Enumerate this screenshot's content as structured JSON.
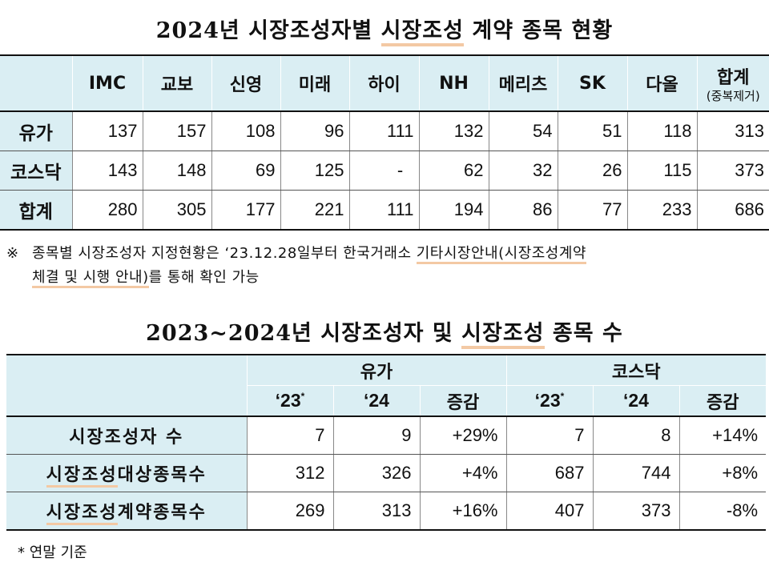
{
  "title1": {
    "parts": [
      "2024년 시장조성자별 ",
      "시장조성",
      " 계약 종목 현황"
    ]
  },
  "table1": {
    "headers": [
      "",
      "IMC",
      "교보",
      "신영",
      "미래",
      "하이",
      "NH",
      "메리츠",
      "SK",
      "다올",
      "합계"
    ],
    "total_sub": "(중복제거)",
    "rows": [
      {
        "label": "유가",
        "values": [
          "137",
          "157",
          "108",
          "96",
          "111",
          "132",
          "54",
          "51",
          "118",
          "313"
        ]
      },
      {
        "label": "코스닥",
        "values": [
          "143",
          "148",
          "69",
          "125",
          "-",
          "62",
          "32",
          "26",
          "115",
          "373"
        ]
      },
      {
        "label": "합계",
        "values": [
          "280",
          "305",
          "177",
          "221",
          "111",
          "194",
          "86",
          "77",
          "233",
          "686"
        ]
      }
    ]
  },
  "note": {
    "mark": "※",
    "line1_a": "종목별 시장조성자 지정현황은 ‘23.12.28일부터 한국거래소 ",
    "line1_b": "기타시장안내(시장조성계약",
    "line2_a": "체결 및 시행 안내)",
    "line2_b": "를 통해 확인 가능"
  },
  "title2": {
    "parts": [
      "2023~2024년 시장조성자 및 ",
      "시장조성",
      " 종목 수"
    ]
  },
  "table2": {
    "group_headers": [
      "유가",
      "코스닥"
    ],
    "sub_headers": [
      {
        "label": "‘23",
        "sup": "*"
      },
      {
        "label": "‘24",
        "sup": ""
      },
      {
        "label": "증감",
        "sup": ""
      },
      {
        "label": "‘23",
        "sup": "*"
      },
      {
        "label": "‘24",
        "sup": ""
      },
      {
        "label": "증감",
        "sup": ""
      }
    ],
    "rows": [
      {
        "label_a": "시장조성자 수",
        "label_b": "",
        "values": [
          "7",
          "9",
          "+29%",
          "7",
          "8",
          "+14%"
        ]
      },
      {
        "label_a": "시장조성",
        "label_b": "대상종목수",
        "values": [
          "312",
          "326",
          "+4%",
          "687",
          "744",
          "+8%"
        ]
      },
      {
        "label_a": "시장조성",
        "label_b": "계약종목수",
        "values": [
          "269",
          "313",
          "+16%",
          "407",
          "373",
          "-8%"
        ]
      }
    ]
  },
  "footnote": "* 연말 기준",
  "colors": {
    "header_bg": "#daeef3",
    "underline": "#f3c9a4"
  }
}
